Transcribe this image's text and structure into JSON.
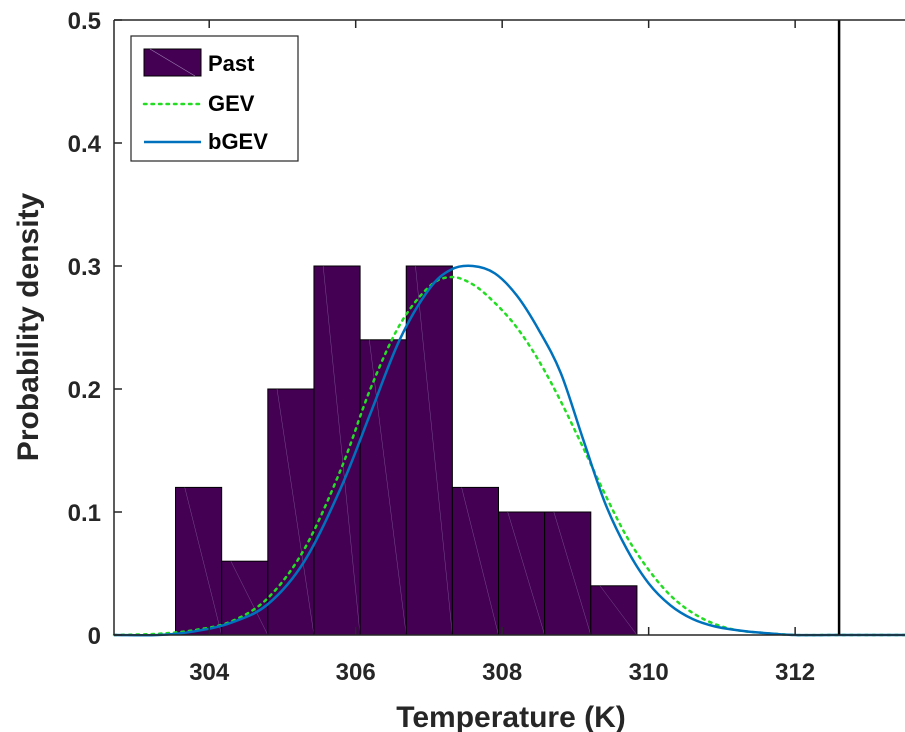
{
  "chart_data": {
    "type": "bar",
    "xlabel": "Temperature (K)",
    "ylabel": "Probability density",
    "xlim": [
      302.7,
      313.5
    ],
    "ylim": [
      0,
      0.5
    ],
    "xticks": [
      304,
      306,
      308,
      310,
      312
    ],
    "yticks": [
      0,
      0.1,
      0.2,
      0.3,
      0.4,
      0.5
    ],
    "ytick_labels": [
      "0",
      "0.1",
      "0.2",
      "0.3",
      "0.4",
      "0.5"
    ],
    "grid": false,
    "legend_position": "top-left",
    "histogram": {
      "name": "Past",
      "color": "#440154",
      "edges": [
        303.54,
        304.17,
        304.8,
        305.43,
        306.06,
        306.69,
        307.32,
        307.95,
        308.58,
        309.21,
        309.84
      ],
      "values": [
        0.12,
        0.06,
        0.2,
        0.3,
        0.24,
        0.3,
        0.12,
        0.1,
        0.1,
        0.04
      ]
    },
    "curves": [
      {
        "name": "GEV",
        "color": "#22dd22",
        "style": "dotted",
        "x": [
          302.7,
          303.3,
          303.8,
          304.3,
          304.8,
          305.3,
          305.8,
          306.2,
          306.6,
          307.0,
          307.3,
          307.6,
          307.9,
          308.2,
          308.5,
          308.8,
          309.1,
          309.4,
          309.7,
          310.0,
          310.3,
          310.6,
          310.9,
          311.2,
          311.5,
          312.0,
          312.5,
          313.0,
          313.5
        ],
        "y": [
          0.0,
          0.001,
          0.004,
          0.011,
          0.03,
          0.07,
          0.135,
          0.2,
          0.252,
          0.283,
          0.291,
          0.285,
          0.27,
          0.25,
          0.223,
          0.19,
          0.153,
          0.115,
          0.08,
          0.053,
          0.032,
          0.018,
          0.009,
          0.004,
          0.002,
          0.0,
          0.0,
          0.0,
          0.0
        ]
      },
      {
        "name": "bGEV",
        "color": "#0072bd",
        "style": "solid",
        "x": [
          302.7,
          303.3,
          303.8,
          304.3,
          304.8,
          305.3,
          305.8,
          306.2,
          306.6,
          307.0,
          307.3,
          307.6,
          307.9,
          308.2,
          308.5,
          308.8,
          309.1,
          309.4,
          309.7,
          310.0,
          310.3,
          310.6,
          310.9,
          311.2,
          311.5,
          312.0,
          312.5,
          313.0,
          313.5
        ],
        "y": [
          0.0,
          0.0,
          0.003,
          0.01,
          0.025,
          0.06,
          0.12,
          0.18,
          0.24,
          0.281,
          0.297,
          0.3,
          0.294,
          0.276,
          0.248,
          0.213,
          0.16,
          0.108,
          0.07,
          0.042,
          0.024,
          0.013,
          0.007,
          0.004,
          0.002,
          0.0,
          0.0,
          0.0,
          0.0
        ]
      }
    ],
    "vertical_line": {
      "x": 312.6,
      "color": "#000000"
    },
    "legend": [
      "Past",
      "GEV",
      "bGEV"
    ]
  }
}
